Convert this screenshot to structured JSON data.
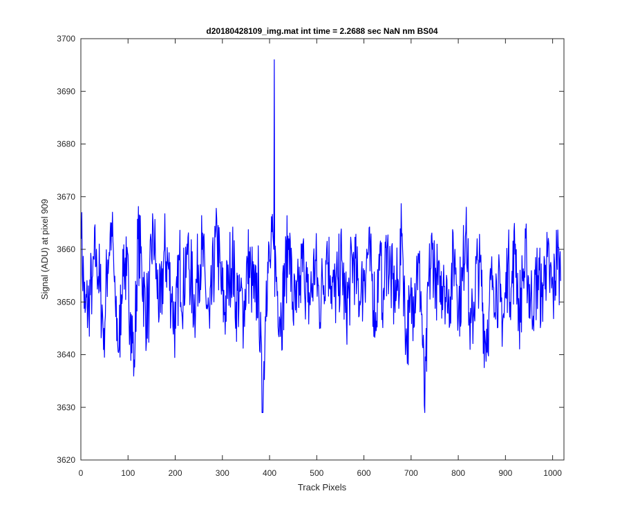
{
  "chart_data": {
    "type": "line",
    "title": "d20180428109_img.mat int time = 2.2688 sec  NaN nm BS04",
    "xlabel": "Track Pixels",
    "ylabel": "Signal (ADU) at pixel 909",
    "xlim": [
      0,
      1024
    ],
    "ylim": [
      3620,
      3700
    ],
    "xticks": [
      0,
      100,
      200,
      300,
      400,
      500,
      600,
      700,
      800,
      900,
      1000
    ],
    "yticks": [
      3620,
      3630,
      3640,
      3650,
      3660,
      3670,
      3680,
      3690,
      3700
    ],
    "grid": false,
    "legend": "none",
    "series": [
      {
        "color": "#0000ff",
        "x_start": 1,
        "x_step": 8,
        "values": [
          3662,
          3648,
          3650,
          3655,
          3660,
          3652,
          3645,
          3658,
          3665,
          3650,
          3641,
          3660,
          3655,
          3648,
          3639,
          3662,
          3657,
          3648,
          3650,
          3665,
          3654,
          3648,
          3660,
          3657,
          3650,
          3645,
          3658,
          3652,
          3661,
          3655,
          3649,
          3657,
          3660,
          3651,
          3645,
          3656,
          3662,
          3653,
          3648,
          3655,
          3659,
          3650,
          3652,
          3647,
          3658,
          3655,
          3650,
          3654,
          3628,
          3654,
          3658,
          3660,
          3652,
          3647,
          3655,
          3662,
          3650,
          3648,
          3655,
          3657,
          3650,
          3652,
          3658,
          3650,
          3653,
          3660,
          3655,
          3651,
          3654,
          3658,
          3648,
          3652,
          3659,
          3654,
          3650,
          3656,
          3659,
          3654,
          3648,
          3656,
          3652,
          3660,
          3655,
          3650,
          3654,
          3663,
          3642,
          3648,
          3651,
          3657,
          3652,
          3629,
          3653,
          3660,
          3655,
          3650,
          3657,
          3648,
          3654,
          3660,
          3650,
          3654,
          3668,
          3641,
          3650,
          3658,
          3653,
          3643,
          3648,
          3655,
          3654,
          3650,
          3647,
          3657,
          3653,
          3661,
          3648,
          3654,
          3658,
          3650,
          3652,
          3655,
          3651,
          3657,
          3655,
          3651,
          3659,
          3654
        ]
      }
    ],
    "spikes": [
      {
        "x": 410,
        "y": 3696
      }
    ]
  }
}
